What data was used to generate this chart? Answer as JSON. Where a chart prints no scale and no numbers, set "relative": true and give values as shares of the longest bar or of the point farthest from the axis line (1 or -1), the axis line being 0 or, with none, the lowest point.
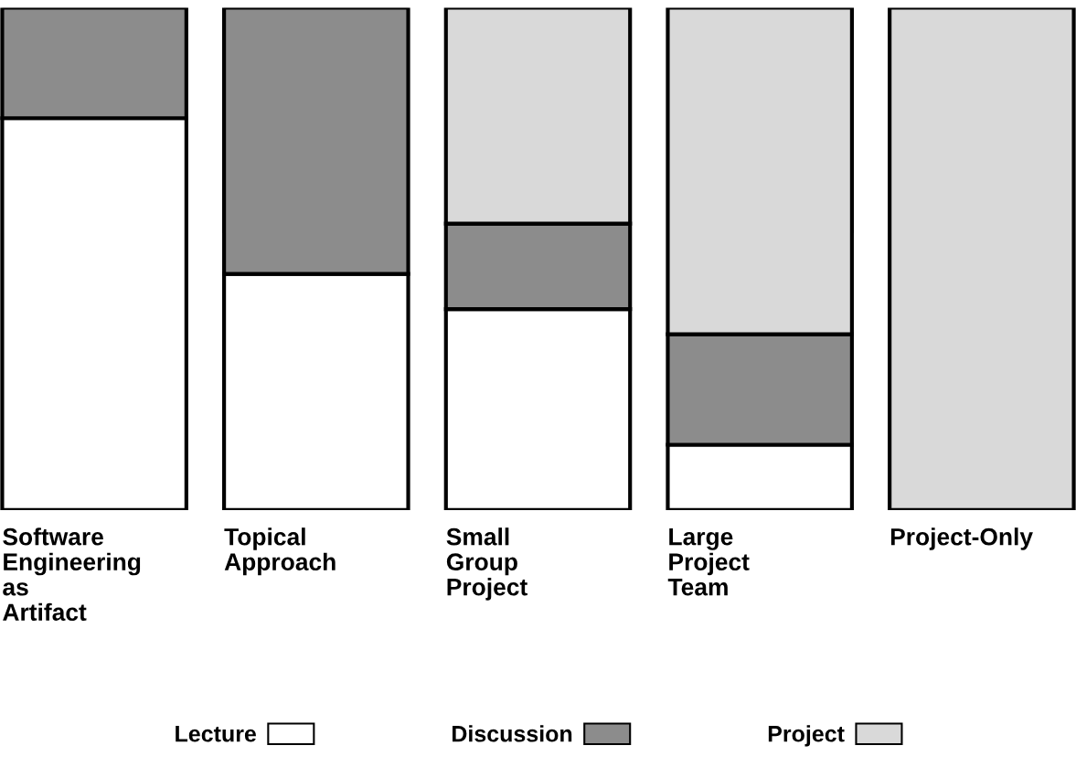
{
  "chart_data": {
    "type": "bar",
    "stacked": true,
    "relative": true,
    "legend": "bottom",
    "categories": [
      "Software Engineering as Artifact",
      "Topical Approach",
      "Small Group Project",
      "Large Project Team",
      "Project-Only"
    ],
    "series": [
      {
        "name": "Lecture",
        "color": "#ffffff",
        "values": [
          0.78,
          0.47,
          0.4,
          0.13,
          0
        ]
      },
      {
        "name": "Discussion",
        "color": "#8c8c8c",
        "values": [
          0.22,
          0.53,
          0.17,
          0.22,
          0
        ]
      },
      {
        "name": "Project",
        "color": "#d9d9d9",
        "values": [
          0,
          0,
          0.43,
          0.65,
          1.0
        ]
      }
    ]
  }
}
